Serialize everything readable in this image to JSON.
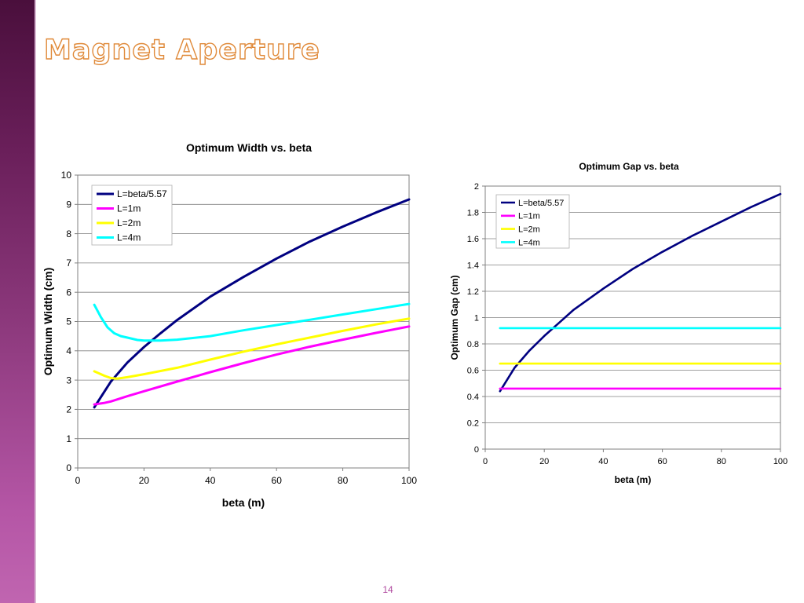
{
  "slide": {
    "title": "Magnet Aperture",
    "page_number": "14",
    "sidebar_color": "#6a1f5a",
    "title_outline_color": "#e08a3a"
  },
  "chart_data": [
    {
      "type": "line",
      "title": "Optimum Width vs. beta",
      "xlabel": "beta (m)",
      "ylabel": "Optimum Width (cm)",
      "xlim": [
        0,
        100
      ],
      "ylim": [
        0,
        10
      ],
      "x_ticks": [
        0,
        20,
        40,
        60,
        80,
        100
      ],
      "y_ticks": [
        0,
        1,
        2,
        3,
        4,
        5,
        6,
        7,
        8,
        9,
        10
      ],
      "grid": true,
      "legend_position": "top-left",
      "series": [
        {
          "name": "L=beta/5.57",
          "color": "#000080",
          "x": [
            5,
            10,
            15,
            20,
            25,
            30,
            40,
            50,
            60,
            70,
            80,
            90,
            100
          ],
          "y": [
            2.07,
            2.95,
            3.6,
            4.13,
            4.6,
            5.05,
            5.85,
            6.52,
            7.15,
            7.73,
            8.24,
            8.72,
            9.17
          ]
        },
        {
          "name": "L=1m",
          "color": "#ff00ff",
          "x": [
            5,
            8,
            10,
            15,
            20,
            30,
            40,
            50,
            60,
            70,
            80,
            90,
            100
          ],
          "y": [
            2.17,
            2.22,
            2.27,
            2.45,
            2.62,
            2.95,
            3.27,
            3.58,
            3.87,
            4.14,
            4.38,
            4.61,
            4.83
          ]
        },
        {
          "name": "L=2m",
          "color": "#ffff00",
          "x": [
            5,
            8,
            10,
            12,
            15,
            20,
            30,
            40,
            50,
            60,
            70,
            80,
            90,
            100
          ],
          "y": [
            3.3,
            3.15,
            3.07,
            3.05,
            3.1,
            3.2,
            3.42,
            3.7,
            3.97,
            4.22,
            4.45,
            4.68,
            4.9,
            5.1
          ]
        },
        {
          "name": "L=4m",
          "color": "#00ffff",
          "x": [
            5,
            7,
            9,
            11,
            13,
            15,
            18,
            20,
            25,
            30,
            40,
            50,
            60,
            70,
            80,
            90,
            100
          ],
          "y": [
            5.57,
            5.15,
            4.8,
            4.6,
            4.5,
            4.45,
            4.37,
            4.35,
            4.35,
            4.38,
            4.5,
            4.7,
            4.88,
            5.06,
            5.24,
            5.42,
            5.6
          ]
        }
      ]
    },
    {
      "type": "line",
      "title": "Optimum Gap vs. beta",
      "xlabel": "beta (m)",
      "ylabel": "Optimum Gap (cm)",
      "xlim": [
        0,
        100
      ],
      "ylim": [
        0,
        2
      ],
      "x_ticks": [
        0,
        20,
        40,
        60,
        80,
        100
      ],
      "y_ticks": [
        0,
        0.2,
        0.4,
        0.6,
        0.8,
        1,
        1.2,
        1.4,
        1.6,
        1.8,
        2
      ],
      "grid": true,
      "legend_position": "top-left",
      "series": [
        {
          "name": "L=beta/5.57",
          "color": "#000080",
          "x": [
            5,
            10,
            15,
            20,
            25,
            30,
            40,
            50,
            60,
            70,
            80,
            90,
            100
          ],
          "y": [
            0.44,
            0.62,
            0.75,
            0.86,
            0.96,
            1.06,
            1.22,
            1.37,
            1.5,
            1.62,
            1.73,
            1.84,
            1.94
          ]
        },
        {
          "name": "L=1m",
          "color": "#ff00ff",
          "x": [
            5,
            100
          ],
          "y": [
            0.46,
            0.46
          ]
        },
        {
          "name": "L=2m",
          "color": "#ffff00",
          "x": [
            5,
            100
          ],
          "y": [
            0.65,
            0.65
          ]
        },
        {
          "name": "L=4m",
          "color": "#00ffff",
          "x": [
            5,
            100
          ],
          "y": [
            0.92,
            0.92
          ]
        }
      ]
    }
  ]
}
